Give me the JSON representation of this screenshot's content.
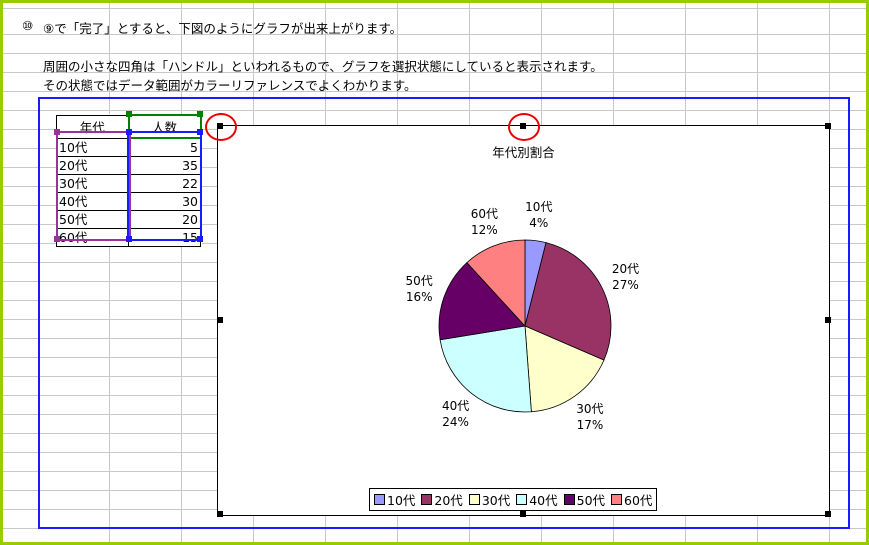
{
  "instructions": {
    "step_number": "⑩",
    "line1": "⑨で「完了」とすると、下図のようにグラフが出来上がります。",
    "line2": "周囲の小さな四角は「ハンドル」といわれるもので、グラフを選択状態にしていると表示されます。",
    "line3": "その状態ではデータ範囲がカラーリファレンスでよくわかります。"
  },
  "table": {
    "headers": [
      "年代",
      "人数"
    ],
    "rows": [
      [
        "10代",
        "5"
      ],
      [
        "20代",
        "35"
      ],
      [
        "30代",
        "22"
      ],
      [
        "40代",
        "30"
      ],
      [
        "50代",
        "20"
      ],
      [
        "60代",
        "15"
      ]
    ]
  },
  "chart_data": {
    "type": "pie",
    "title": "年代別割合",
    "categories": [
      "10代",
      "20代",
      "30代",
      "40代",
      "50代",
      "60代"
    ],
    "values": [
      5,
      35,
      22,
      30,
      20,
      15
    ],
    "percent_labels": [
      "4%",
      "27%",
      "17%",
      "24%",
      "16%",
      "12%"
    ],
    "colors": [
      "#9999FF",
      "#993366",
      "#FFFFCC",
      "#CCFFFF",
      "#660066",
      "#FF8080"
    ],
    "legend_position": "bottom"
  },
  "colors": {
    "page_border": "#99CC00",
    "chart_frame": "#1a1aff",
    "annotation_circle": "#ee0000"
  }
}
